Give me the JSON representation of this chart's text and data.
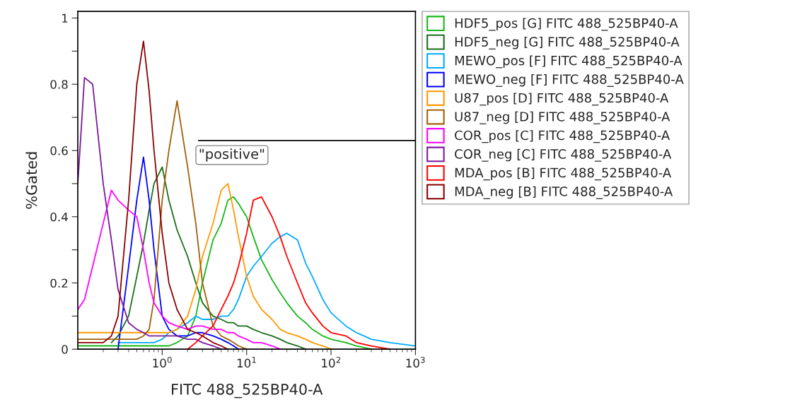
{
  "chart_data": {
    "type": "line",
    "xlabel": "FITC 488_525BP40-A",
    "ylabel": "%Gated",
    "log": "x",
    "legend": "right",
    "grid": false,
    "xlim": [
      0.1,
      1000
    ],
    "ylim": [
      0,
      1.02
    ],
    "xticks": [
      {
        "value": 1,
        "label": "10$^{0}$"
      },
      {
        "value": 10,
        "label": "10$^{1}$"
      },
      {
        "value": 100,
        "label": "10$^{2}$"
      },
      {
        "value": 1000,
        "label": "10$^{3}$"
      }
    ],
    "yticks": [
      0,
      {
        "value": 0.1,
        "label": null
      },
      0.2,
      {
        "value": 0.3,
        "label": null
      },
      0.4,
      {
        "value": 0.5,
        "label": null
      },
      0.6,
      {
        "value": 0.7,
        "label": null
      },
      0.8,
      {
        "value": 0.9,
        "label": null
      },
      1
    ],
    "x": [
      0.1,
      0.12,
      0.15,
      0.2,
      0.25,
      0.3,
      0.4,
      0.5,
      0.6,
      0.7,
      0.8,
      1,
      1.2,
      1.5,
      2,
      2.5,
      3,
      4,
      5,
      6,
      7,
      8,
      10,
      12,
      15,
      20,
      25,
      30,
      40,
      50,
      60,
      80,
      100,
      150,
      200,
      300,
      500,
      1000
    ],
    "annotations": [
      {
        "text": "\"positive\"",
        "x": 2.7,
        "y": 0.63
      }
    ],
    "series": [
      {
        "name": "HDF5_pos [G] FITC 488_525BP40-A",
        "color": "#19b519",
        "values": [
          0.01,
          0.01,
          0.01,
          0.01,
          0.01,
          0.01,
          0.01,
          0.01,
          0.01,
          0.01,
          0.01,
          0.01,
          0.01,
          0.02,
          0.04,
          0.1,
          0.2,
          0.33,
          0.38,
          0.45,
          0.46,
          0.44,
          0.4,
          0.34,
          0.27,
          0.21,
          0.17,
          0.14,
          0.1,
          0.08,
          0.06,
          0.04,
          0.03,
          0.02,
          0.01,
          0,
          null,
          null
        ]
      },
      {
        "name": "HDF5_neg [G] FITC 488_525BP40-A",
        "color": "#1a6e1a",
        "values": [
          null,
          null,
          null,
          null,
          0.02,
          0.04,
          0.1,
          0.22,
          0.32,
          0.42,
          0.5,
          0.55,
          0.45,
          0.36,
          0.28,
          0.2,
          0.14,
          0.1,
          0.09,
          0.08,
          0.08,
          0.07,
          0.07,
          0.06,
          0.05,
          0.04,
          0.03,
          0.02,
          0.01,
          0,
          null,
          null,
          null,
          null,
          null,
          null,
          null,
          null
        ]
      },
      {
        "name": "MEWO_pos [F] FITC 488_525BP40-A",
        "color": "#00aaff",
        "values": [
          null,
          null,
          null,
          null,
          null,
          0.02,
          0.02,
          0.02,
          0.02,
          0.02,
          0.02,
          0.03,
          0.05,
          0.06,
          0.08,
          0.1,
          0.09,
          0.09,
          0.1,
          0.1,
          0.12,
          0.15,
          0.22,
          0.25,
          0.28,
          0.32,
          0.34,
          0.35,
          0.33,
          0.26,
          0.22,
          0.15,
          0.11,
          0.07,
          0.05,
          0.03,
          0.02,
          0.01
        ]
      },
      {
        "name": "MEWO_neg [F] FITC 488_525BP40-A",
        "color": "#0000ff",
        "values": [
          null,
          null,
          null,
          null,
          null,
          0,
          0.25,
          0.45,
          0.58,
          0.45,
          0.3,
          0.1,
          0.06,
          0.04,
          0.04,
          0.05,
          0.05,
          0.04,
          0.03,
          0.02,
          0.01,
          0,
          null,
          null,
          null,
          null,
          null,
          null,
          null,
          null,
          null,
          null,
          null,
          null,
          null,
          null,
          null,
          null
        ]
      },
      {
        "name": "U87_pos [D] FITC 488_525BP40-A",
        "color": "#ff9900",
        "values": [
          0.05,
          0.05,
          0.05,
          0.05,
          0.05,
          0.05,
          0.05,
          0.05,
          0.05,
          0.05,
          0.05,
          0.05,
          0.05,
          0.06,
          0.1,
          0.18,
          0.28,
          0.38,
          0.48,
          0.5,
          0.42,
          0.34,
          0.22,
          0.16,
          0.12,
          0.09,
          0.06,
          0.05,
          0.04,
          0.03,
          0.02,
          0.01,
          0,
          null,
          null,
          null,
          null,
          null
        ]
      },
      {
        "name": "U87_neg [D] FITC 488_525BP40-A",
        "color": "#a0600a",
        "values": [
          0.03,
          0.03,
          0.03,
          0.03,
          0.03,
          0.03,
          0.03,
          0.03,
          0.04,
          0.06,
          0.15,
          0.45,
          0.6,
          0.75,
          0.55,
          0.38,
          0.2,
          0.07,
          0.04,
          0.03,
          0.02,
          0.01,
          0,
          null,
          null,
          null,
          null,
          null,
          null,
          null,
          null,
          null,
          null,
          null,
          null,
          null,
          null,
          null
        ]
      },
      {
        "name": "COR_pos [C] FITC 488_525BP40-A",
        "color": "#ff00ff",
        "values": [
          0.12,
          0.15,
          0.25,
          0.38,
          0.48,
          0.45,
          0.42,
          0.4,
          0.3,
          0.2,
          0.14,
          0.1,
          0.08,
          0.07,
          0.06,
          0.07,
          0.07,
          0.06,
          0.06,
          0.05,
          0.05,
          0.04,
          0.03,
          0.02,
          0.02,
          0.01,
          0,
          null,
          null,
          null,
          null,
          null,
          null,
          null,
          null,
          null,
          null,
          null
        ]
      },
      {
        "name": "COR_neg [C] FITC 488_525BP40-A",
        "color": "#7a1a9a",
        "values": [
          0.5,
          0.82,
          0.8,
          0.5,
          0.33,
          0.18,
          0.08,
          0.06,
          0.05,
          0.04,
          0.04,
          0.04,
          0.04,
          0.04,
          0.03,
          0.03,
          0.02,
          0.01,
          0,
          null,
          null,
          null,
          null,
          null,
          null,
          null,
          null,
          null,
          null,
          null,
          null,
          null,
          null,
          null,
          null,
          null,
          null,
          null
        ]
      },
      {
        "name": "MDA_pos [B] FITC 488_525BP40-A",
        "color": "#ff0000",
        "values": [
          null,
          null,
          null,
          null,
          null,
          null,
          null,
          null,
          null,
          null,
          null,
          null,
          null,
          null,
          0,
          0.02,
          0.04,
          0.07,
          0.12,
          0.16,
          0.2,
          0.25,
          0.35,
          0.45,
          0.46,
          0.4,
          0.34,
          0.28,
          0.2,
          0.14,
          0.11,
          0.07,
          0.05,
          0.04,
          0.02,
          0.01,
          0,
          null
        ]
      },
      {
        "name": "MDA_neg [B] FITC 488_525BP40-A",
        "color": "#8b0000",
        "values": [
          0.02,
          0.02,
          0.02,
          0.02,
          0.04,
          0.1,
          0.45,
          0.8,
          0.93,
          0.78,
          0.6,
          0.35,
          0.2,
          0.12,
          0.06,
          0.05,
          0.04,
          0.02,
          0.01,
          0,
          null,
          null,
          null,
          null,
          null,
          null,
          null,
          null,
          null,
          null,
          null,
          null,
          null,
          null,
          null,
          null,
          null,
          null
        ]
      },
      {
        "type": "line",
        "color": "#000000",
        "x": [
          2.7,
          1000
        ],
        "values": [
          0.63,
          0.63
        ]
      }
    ]
  }
}
